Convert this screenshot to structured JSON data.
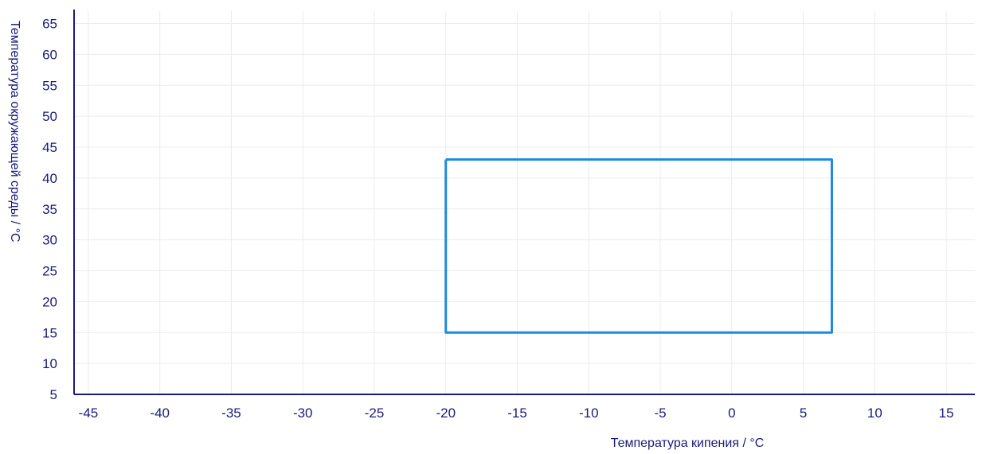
{
  "chart_data": {
    "type": "line",
    "title": "",
    "xlabel": "Температура кипения / °C",
    "ylabel": "Температура окружающей среды / °C",
    "xlim": [
      -46,
      17
    ],
    "ylim": [
      5,
      67
    ],
    "x_ticks": [
      -45,
      -40,
      -35,
      -30,
      -25,
      -20,
      -15,
      -10,
      -5,
      0,
      5,
      10,
      15
    ],
    "y_ticks": [
      5,
      10,
      15,
      20,
      25,
      30,
      35,
      40,
      45,
      50,
      55,
      60,
      65
    ],
    "grid": true,
    "series": [
      {
        "color": "#1e88e5",
        "x": [
          -20,
          7,
          7,
          -20,
          -20
        ],
        "y": [
          43,
          43,
          15,
          15,
          43
        ]
      }
    ]
  },
  "colors": {
    "axis": "#1a1a7a",
    "grid": "#ececec",
    "series": "#1e88e5"
  }
}
